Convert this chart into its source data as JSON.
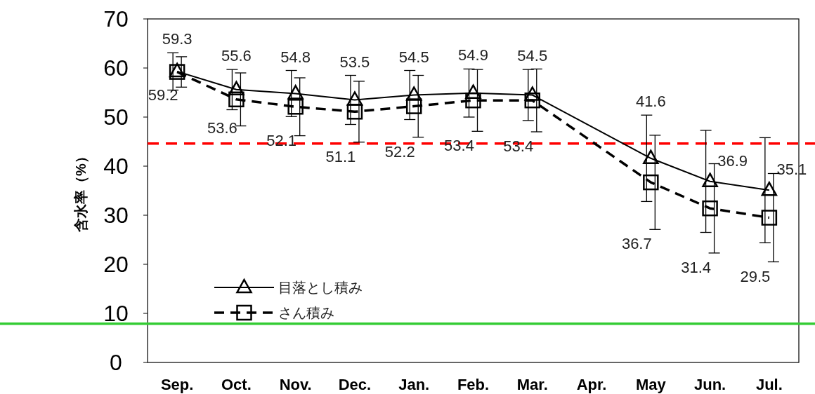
{
  "chart_data": {
    "type": "line",
    "ylabel": "含水率（%）",
    "categories": [
      "Sep.",
      "Oct.",
      "Nov.",
      "Dec.",
      "Jan.",
      "Feb.",
      "Mar.",
      "Apr.",
      "May",
      "Jun.",
      "Jul."
    ],
    "ylim": [
      0,
      70
    ],
    "yticks": [
      0,
      10,
      20,
      30,
      40,
      50,
      60,
      70
    ],
    "series": [
      {
        "name": "目落とし積み",
        "color": "#000000",
        "marker": "triangle",
        "line_style": "solid",
        "values": [
          59.3,
          55.6,
          54.8,
          53.5,
          54.5,
          54.9,
          54.5,
          null,
          41.6,
          36.9,
          35.1
        ],
        "errors": [
          3.8,
          4.1,
          4.7,
          5.0,
          5.0,
          4.9,
          5.2,
          null,
          8.8,
          10.4,
          10.7
        ]
      },
      {
        "name": "さん積み",
        "color": "#000000",
        "marker": "square",
        "line_style": "dashed",
        "values": [
          59.2,
          53.6,
          52.1,
          51.1,
          52.2,
          53.4,
          53.4,
          null,
          36.7,
          31.4,
          29.5
        ],
        "errors": [
          3.1,
          5.4,
          5.9,
          6.2,
          6.3,
          6.3,
          6.4,
          null,
          9.6,
          9.1,
          9.0
        ]
      }
    ],
    "ref_lines": [
      {
        "axis": "y",
        "value": 44.6,
        "color": "#ff0000",
        "line_style": "dashed"
      },
      {
        "axis": "y",
        "value": 7.9,
        "color": "#33cc33",
        "line_style": "solid"
      }
    ],
    "data_labels": true,
    "legend": "bottom left",
    "grid": false
  }
}
